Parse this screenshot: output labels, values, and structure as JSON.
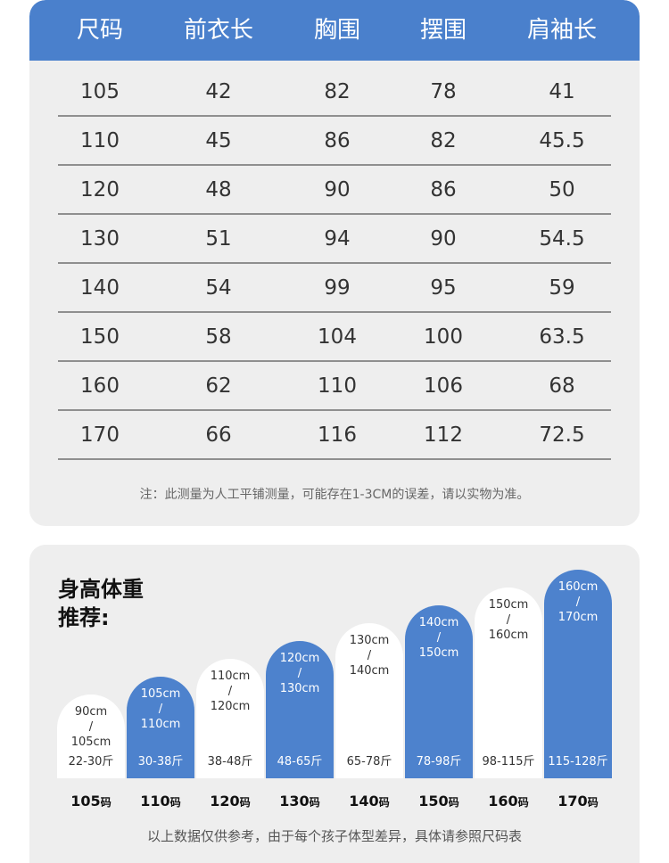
{
  "table": {
    "headers": [
      "尺码",
      "前衣长",
      "胸围",
      "摆围",
      "肩袖长"
    ],
    "rows": [
      [
        "105",
        "42",
        "82",
        "78",
        "41"
      ],
      [
        "110",
        "45",
        "86",
        "82",
        "45.5"
      ],
      [
        "120",
        "48",
        "90",
        "86",
        "50"
      ],
      [
        "130",
        "51",
        "94",
        "90",
        "54.5"
      ],
      [
        "140",
        "54",
        "99",
        "95",
        "59"
      ],
      [
        "150",
        "58",
        "104",
        "100",
        "63.5"
      ],
      [
        "160",
        "62",
        "110",
        "106",
        "68"
      ],
      [
        "170",
        "66",
        "116",
        "112",
        "72.5"
      ]
    ],
    "note": "注：此测量为人工平铺测量，可能存在1-3CM的误差，请以实物为准。"
  },
  "recommendation": {
    "title_line1": "身高体重",
    "title_line2": "推荐:",
    "items": [
      {
        "height_from": "90cm",
        "sep": "/",
        "height_to": "105cm",
        "weight": "22-30斤",
        "size": "105",
        "unit": "码",
        "style": "white",
        "level": 1
      },
      {
        "height_from": "105cm",
        "sep": "/",
        "height_to": "110cm",
        "weight": "30-38斤",
        "size": "110",
        "unit": "码",
        "style": "blue",
        "level": 2
      },
      {
        "height_from": "110cm",
        "sep": "/",
        "height_to": "120cm",
        "weight": "38-48斤",
        "size": "120",
        "unit": "码",
        "style": "white",
        "level": 3
      },
      {
        "height_from": "120cm",
        "sep": "/",
        "height_to": "130cm",
        "weight": "48-65斤",
        "size": "130",
        "unit": "码",
        "style": "blue",
        "level": 4
      },
      {
        "height_from": "130cm",
        "sep": "/",
        "height_to": "140cm",
        "weight": "65-78斤",
        "size": "140",
        "unit": "码",
        "style": "white",
        "level": 5
      },
      {
        "height_from": "140cm",
        "sep": "/",
        "height_to": "150cm",
        "weight": "78-98斤",
        "size": "150",
        "unit": "码",
        "style": "blue",
        "level": 6
      },
      {
        "height_from": "150cm",
        "sep": "/",
        "height_to": "160cm",
        "weight": "98-115斤",
        "size": "160",
        "unit": "码",
        "style": "white",
        "level": 7
      },
      {
        "height_from": "160cm",
        "sep": "/",
        "height_to": "170cm",
        "weight": "115-128斤",
        "size": "170",
        "unit": "码",
        "style": "blue",
        "level": 8
      }
    ],
    "note": "以上数据仅供参考，由于每个孩子体型差异，具体请参照尺码表"
  }
}
